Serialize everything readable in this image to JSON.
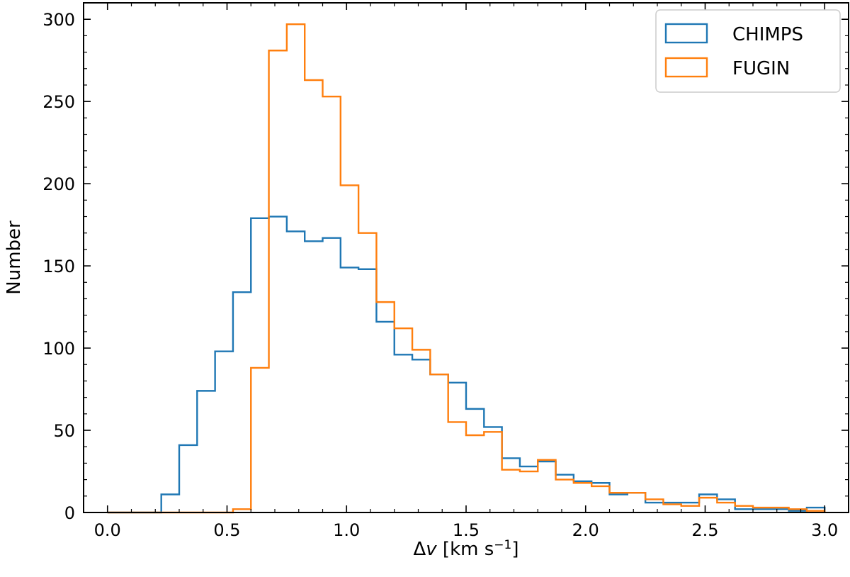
{
  "chart_data": {
    "type": "histogram-step",
    "xlabel_prefix": "Δ",
    "xlabel_var": "v",
    "xlabel_unit": " [km s",
    "xlabel_exp": "−1",
    "xlabel_close": "]",
    "ylabel": "Number",
    "xlim": [
      -0.1,
      3.1
    ],
    "ylim": [
      0,
      310
    ],
    "x_ticks": [
      0.0,
      0.5,
      1.0,
      1.5,
      2.0,
      2.5,
      3.0
    ],
    "x_tick_labels": [
      "0.0",
      "0.5",
      "1.0",
      "1.5",
      "2.0",
      "2.5",
      "3.0"
    ],
    "y_ticks": [
      0,
      50,
      100,
      150,
      200,
      250,
      300
    ],
    "y_tick_labels": [
      "0",
      "50",
      "100",
      "150",
      "200",
      "250",
      "300"
    ],
    "grid": false,
    "legend_position": "top-right",
    "bin_edges": [
      0.0,
      0.075,
      0.15,
      0.225,
      0.3,
      0.375,
      0.45,
      0.525,
      0.6,
      0.675,
      0.75,
      0.825,
      0.9,
      0.975,
      1.05,
      1.125,
      1.2,
      1.275,
      1.35,
      1.425,
      1.5,
      1.575,
      1.65,
      1.725,
      1.8,
      1.875,
      1.95,
      2.025,
      2.1,
      2.175,
      2.25,
      2.325,
      2.4,
      2.475,
      2.55,
      2.625,
      2.7,
      2.775,
      2.85,
      2.925,
      3.0
    ],
    "series": [
      {
        "name": "CHIMPS",
        "color": "#1f77b4",
        "counts": [
          0,
          0,
          0,
          11,
          41,
          74,
          98,
          134,
          179,
          180,
          171,
          165,
          167,
          149,
          148,
          116,
          96,
          93,
          84,
          79,
          63,
          52,
          33,
          28,
          31,
          23,
          19,
          18,
          11,
          12,
          6,
          6,
          6,
          11,
          8,
          2,
          2,
          2,
          1,
          3
        ]
      },
      {
        "name": "FUGIN",
        "color": "#ff7f0e",
        "counts": [
          0,
          0,
          0,
          0,
          0,
          0,
          0,
          2,
          88,
          281,
          297,
          263,
          253,
          199,
          170,
          128,
          112,
          99,
          84,
          55,
          47,
          49,
          26,
          25,
          32,
          20,
          18,
          16,
          12,
          12,
          8,
          5,
          4,
          9,
          6,
          4,
          3,
          3,
          2,
          1
        ]
      }
    ]
  }
}
